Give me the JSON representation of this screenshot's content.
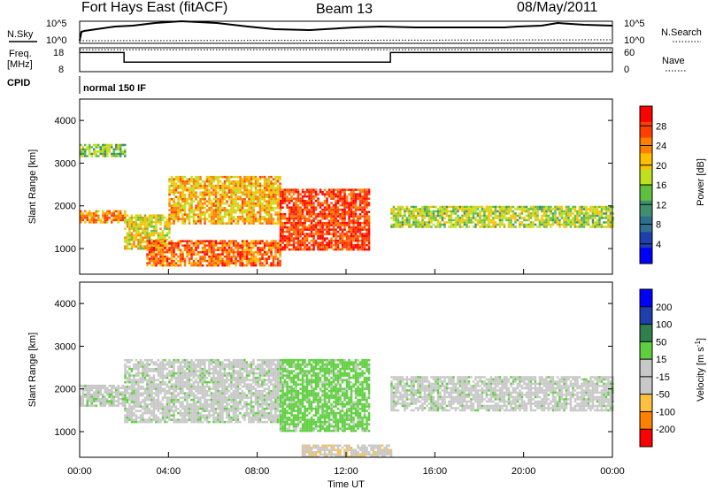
{
  "header": {
    "station": "Fort Hays East (fitACF)",
    "beam": "Beam 13",
    "date": "08/May/2011"
  },
  "panels": {
    "nsky": {
      "left_label": "N.Sky",
      "right_label": "N.Search",
      "left_ticks": [
        "10^5",
        "10^0"
      ],
      "right_ticks": [
        "10^5",
        "10^0"
      ]
    },
    "freq": {
      "left_label_1": "Freq.",
      "left_label_2": "[MHz]",
      "right_label": "Nave",
      "left_ticks": [
        "18",
        "8"
      ],
      "right_ticks": [
        "60",
        "0"
      ],
      "freq_mhz": [
        [
          0,
          2,
          16
        ],
        [
          2,
          14,
          12
        ],
        [
          14,
          24,
          16
        ]
      ],
      "nave": [
        [
          0,
          24,
          55
        ]
      ]
    },
    "cpid": {
      "label": "CPID",
      "mode": "normal 150 IF"
    }
  },
  "colors": {
    "power": [
      "#0000ff",
      "#1f3faf",
      "#2f6f8f",
      "#3f8f6f",
      "#5fbf3f",
      "#bfdf1f",
      "#ffbf00",
      "#ff7f00",
      "#ff3f00",
      "#ff0000"
    ],
    "velocity": [
      "#ff0000",
      "#ff7f00",
      "#ffbf3f",
      "#c8c8c8",
      "#c8c8c8",
      "#5fcf3f",
      "#2f7f4f",
      "#1f3faf",
      "#0000ff"
    ]
  },
  "chart_data": [
    {
      "type": "heatmap",
      "name": "power-panel",
      "ylabel": "Slant Range [km]",
      "ylim": [
        400,
        4500
      ],
      "xlim": [
        0,
        24
      ],
      "yticks": [
        "1000",
        "2000",
        "3000",
        "4000"
      ],
      "colorbar": {
        "label": "Power [dB]",
        "ticks": [
          "4",
          "8",
          "12",
          "16",
          "20",
          "24",
          "28"
        ]
      },
      "bands": [
        {
          "x": [
            0,
            2
          ],
          "y": [
            1600,
            1900
          ],
          "power": 22
        },
        {
          "x": [
            0,
            2
          ],
          "y": [
            3150,
            3450
          ],
          "power": 14
        },
        {
          "x": [
            2,
            4
          ],
          "y": [
            1000,
            1800
          ],
          "power": 18
        },
        {
          "x": [
            4,
            9
          ],
          "y": [
            1600,
            2700
          ],
          "power": 20
        },
        {
          "x": [
            3,
            9
          ],
          "y": [
            600,
            1200
          ],
          "power": 24
        },
        {
          "x": [
            9,
            13
          ],
          "y": [
            1000,
            2400
          ],
          "power": 26
        },
        {
          "x": [
            14,
            24
          ],
          "y": [
            1500,
            2000
          ],
          "power": 16
        }
      ]
    },
    {
      "type": "heatmap",
      "name": "velocity-panel",
      "ylabel": "Slant Range [km]",
      "xlabel": "Time UT",
      "ylim": [
        400,
        4500
      ],
      "xlim": [
        0,
        24
      ],
      "yticks": [
        "1000",
        "2000",
        "3000",
        "4000"
      ],
      "xticks": [
        "00:00",
        "04:00",
        "08:00",
        "12:00",
        "16:00",
        "20:00",
        "00:00"
      ],
      "colorbar": {
        "label": "Velocity [m s",
        "label_sup": "-1",
        "label_end": "]",
        "ticks": [
          "200",
          "100",
          "50",
          "15",
          "-15",
          "-50",
          "-100",
          "-200"
        ]
      },
      "bands": [
        {
          "x": [
            0,
            2
          ],
          "y": [
            1600,
            2100
          ],
          "velocity": 0
        },
        {
          "x": [
            2,
            9
          ],
          "y": [
            1200,
            2700
          ],
          "velocity": 0
        },
        {
          "x": [
            9,
            13
          ],
          "y": [
            1000,
            2700
          ],
          "velocity": 30
        },
        {
          "x": [
            14,
            24
          ],
          "y": [
            1500,
            2300
          ],
          "velocity": 0
        },
        {
          "x": [
            10,
            14
          ],
          "y": [
            400,
            700
          ],
          "velocity": -40
        }
      ]
    }
  ]
}
